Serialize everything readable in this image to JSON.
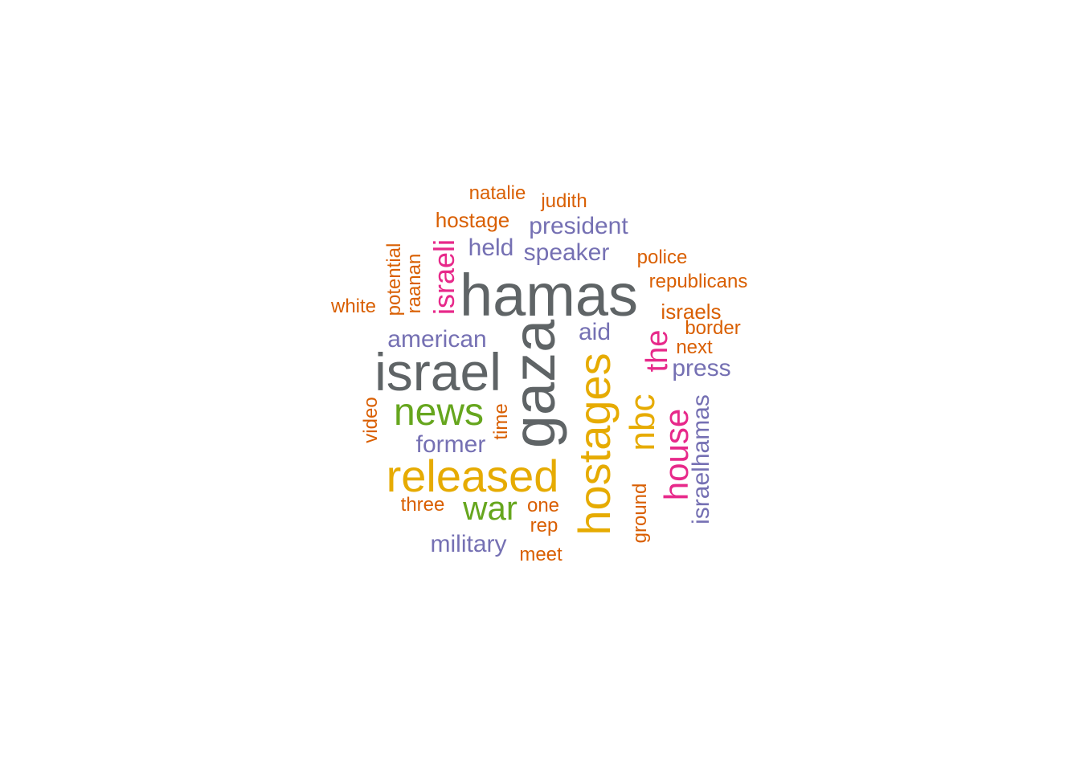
{
  "colors": {
    "gray": "#5f6466",
    "gold": "#e6ab02",
    "green": "#66a61e",
    "magenta": "#e7298a",
    "purple": "#7570b3",
    "orange": "#d95f02"
  },
  "words": [
    {
      "text": "hamas",
      "color": "gray",
      "size": 74,
      "rotated": false
    },
    {
      "text": "gaza",
      "color": "gray",
      "size": 74,
      "rotated": true
    },
    {
      "text": "israel",
      "color": "gray",
      "size": 66,
      "rotated": false
    },
    {
      "text": "released",
      "color": "gold",
      "size": 56,
      "rotated": false
    },
    {
      "text": "hostages",
      "color": "gold",
      "size": 56,
      "rotated": true
    },
    {
      "text": "news",
      "color": "green",
      "size": 48,
      "rotated": false
    },
    {
      "text": "war",
      "color": "green",
      "size": 42,
      "rotated": false
    },
    {
      "text": "nbc",
      "color": "gold",
      "size": 44,
      "rotated": true
    },
    {
      "text": "house",
      "color": "magenta",
      "size": 42,
      "rotated": true
    },
    {
      "text": "the",
      "color": "magenta",
      "size": 38,
      "rotated": true
    },
    {
      "text": "israeli",
      "color": "magenta",
      "size": 36,
      "rotated": true
    },
    {
      "text": "israelhamas",
      "color": "purple",
      "size": 30,
      "rotated": true
    },
    {
      "text": "president",
      "color": "purple",
      "size": 30,
      "rotated": false
    },
    {
      "text": "speaker",
      "color": "purple",
      "size": 30,
      "rotated": false
    },
    {
      "text": "american",
      "color": "purple",
      "size": 30,
      "rotated": false
    },
    {
      "text": "held",
      "color": "purple",
      "size": 30,
      "rotated": false
    },
    {
      "text": "former",
      "color": "purple",
      "size": 30,
      "rotated": false
    },
    {
      "text": "military",
      "color": "purple",
      "size": 30,
      "rotated": false
    },
    {
      "text": "press",
      "color": "purple",
      "size": 30,
      "rotated": false
    },
    {
      "text": "aid",
      "color": "purple",
      "size": 30,
      "rotated": false
    },
    {
      "text": "israels",
      "color": "orange",
      "size": 26,
      "rotated": false
    },
    {
      "text": "natalie",
      "color": "orange",
      "size": 24,
      "rotated": false
    },
    {
      "text": "judith",
      "color": "orange",
      "size": 24,
      "rotated": false
    },
    {
      "text": "hostage",
      "color": "orange",
      "size": 26,
      "rotated": false
    },
    {
      "text": "police",
      "color": "orange",
      "size": 24,
      "rotated": false
    },
    {
      "text": "republicans",
      "color": "orange",
      "size": 24,
      "rotated": false
    },
    {
      "text": "white",
      "color": "orange",
      "size": 24,
      "rotated": false
    },
    {
      "text": "potential",
      "color": "orange",
      "size": 24,
      "rotated": true
    },
    {
      "text": "raanan",
      "color": "orange",
      "size": 24,
      "rotated": true
    },
    {
      "text": "border",
      "color": "orange",
      "size": 24,
      "rotated": false
    },
    {
      "text": "next",
      "color": "orange",
      "size": 24,
      "rotated": false
    },
    {
      "text": "video",
      "color": "orange",
      "size": 24,
      "rotated": true
    },
    {
      "text": "time",
      "color": "orange",
      "size": 24,
      "rotated": true
    },
    {
      "text": "three",
      "color": "orange",
      "size": 24,
      "rotated": false
    },
    {
      "text": "one",
      "color": "orange",
      "size": 24,
      "rotated": false
    },
    {
      "text": "rep",
      "color": "orange",
      "size": 24,
      "rotated": false
    },
    {
      "text": "meet",
      "color": "orange",
      "size": 24,
      "rotated": false
    },
    {
      "text": "ground",
      "color": "orange",
      "size": 24,
      "rotated": true
    }
  ]
}
